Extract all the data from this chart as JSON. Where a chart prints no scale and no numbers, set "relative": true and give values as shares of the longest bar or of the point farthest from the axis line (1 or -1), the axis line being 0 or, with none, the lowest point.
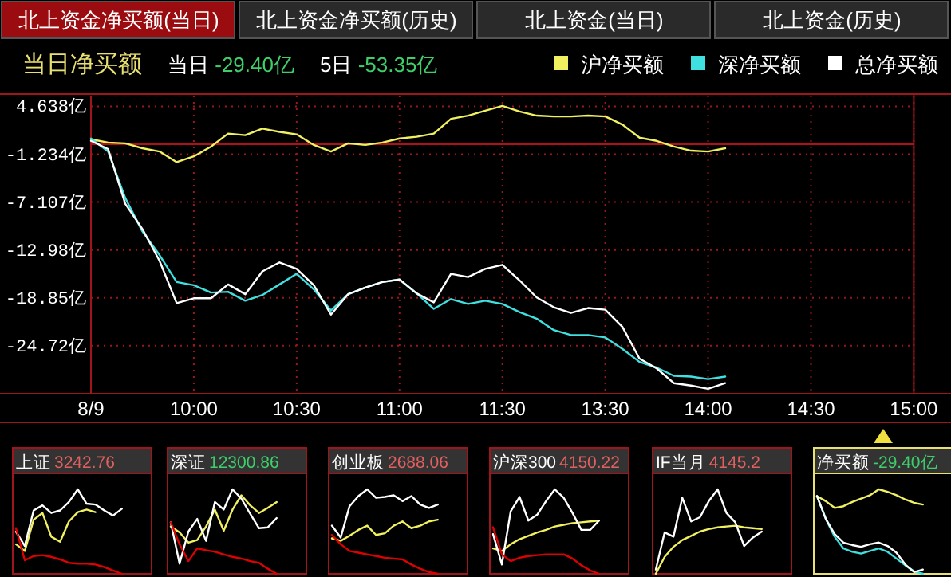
{
  "chart_data": [
    {
      "type": "line",
      "title": "当日净买额",
      "annotations": [
        "北上资金净买额(当日)",
        "北上资金净买额(历史)",
        "北上资金(当日)",
        "北上资金(历史)",
        "当日 -29.40亿",
        "5日 -53.35亿"
      ],
      "legend": "top right",
      "grid": true,
      "categories": [
        "8/9",
        null,
        null,
        null,
        null,
        null,
        "10:00",
        null,
        null,
        null,
        null,
        null,
        "10:30",
        null,
        null,
        null,
        null,
        null,
        "11:00",
        null,
        null,
        null,
        null,
        null,
        "11:30",
        null,
        null,
        null,
        null,
        null,
        "13:30",
        null,
        null,
        null,
        null,
        null,
        "14:00",
        null,
        null,
        null,
        null,
        null,
        "14:30",
        null,
        null,
        null,
        null,
        null,
        "15:00"
      ],
      "ylim": [
        -30.6,
        5.95
      ],
      "yticks": [
        {
          "value": 4.638,
          "label": "4.638亿"
        },
        {
          "value": -1.234,
          "label": "-1.234亿"
        },
        {
          "value": -7.107,
          "label": "-7.107亿"
        },
        {
          "value": -12.98,
          "label": "-12.98亿"
        },
        {
          "value": -18.85,
          "label": "-18.85亿"
        },
        {
          "value": -24.72,
          "label": "-24.72亿"
        }
      ],
      "ref_lines": [
        {
          "axis": "y",
          "value": 0,
          "color": "#b01018"
        }
      ],
      "series": [
        {
          "name": "沪净买额",
          "color": "#f0f060",
          "values": [
            0.6,
            0.2,
            0.1,
            -0.5,
            -0.9,
            -2.2,
            -1.5,
            -0.3,
            1.3,
            1.1,
            1.9,
            1.5,
            1.2,
            -0.1,
            -0.9,
            0.1,
            -0.1,
            0.2,
            0.7,
            0.9,
            1.3,
            3.1,
            3.5,
            4.1,
            4.7,
            4.0,
            3.5,
            3.4,
            3.4,
            3.5,
            3.4,
            2.4,
            0.8,
            0.4,
            -0.3,
            -0.8,
            -0.9,
            -0.5,
            null,
            null,
            null,
            null,
            null,
            null,
            null,
            null,
            null,
            null,
            null
          ]
        },
        {
          "name": "深净买额",
          "color": "#40e0e0",
          "values": [
            0.7,
            -0.9,
            -6.6,
            -10.7,
            -13.6,
            -16.9,
            -17.3,
            -18.2,
            -18.1,
            -19.2,
            -18.5,
            -17.2,
            -15.9,
            -17.8,
            -20.4,
            -18.4,
            -17.6,
            -16.9,
            -16.6,
            -18.3,
            -20.2,
            -19.0,
            -19.6,
            -19.2,
            -19.6,
            -20.6,
            -21.4,
            -22.8,
            -23.4,
            -23.4,
            -23.7,
            -25.1,
            -26.7,
            -27.4,
            -28.4,
            -28.5,
            -28.8,
            -28.5,
            null,
            null,
            null,
            null,
            null,
            null,
            null,
            null,
            null,
            null,
            null
          ]
        },
        {
          "name": "总净买额",
          "color": "#ffffff",
          "values": [
            0.4,
            -0.6,
            -7.3,
            -10.4,
            -14.3,
            -19.5,
            -18.9,
            -18.9,
            -17.2,
            -18.4,
            -15.6,
            -14.5,
            -15.3,
            -17.3,
            -20.9,
            -18.4,
            -17.6,
            -16.9,
            -16.6,
            -18.3,
            -19.4,
            -15.9,
            -16.3,
            -15.3,
            -14.8,
            -16.7,
            -18.8,
            -20.0,
            -20.7,
            -20.1,
            -20.3,
            -22.4,
            -26.3,
            -27.5,
            -29.3,
            -29.6,
            -30.0,
            -29.3,
            null,
            null,
            null,
            null,
            null,
            null,
            null,
            null,
            null,
            null,
            null
          ]
        }
      ]
    },
    {
      "type": "line",
      "title": "上证",
      "subtitle": "3242.76",
      "relative": true,
      "tick_labels": false,
      "categories": [
        null,
        null,
        null,
        null,
        null,
        null,
        null,
        null,
        null,
        null,
        null,
        null,
        null
      ],
      "series": [
        {
          "color": "#f0f060",
          "values": [
            0.35,
            0.27,
            0.64,
            0.72,
            0.44,
            0.38,
            0.62,
            0.73,
            0.76,
            0.73,
            null,
            null,
            null
          ]
        },
        {
          "color": "#ffffff",
          "values": [
            0.5,
            0.33,
            0.75,
            0.81,
            0.72,
            0.75,
            0.85,
            1.0,
            0.83,
            0.82,
            0.75,
            0.69,
            0.77
          ]
        },
        {
          "color": "#e00000",
          "values": [
            0.54,
            0.16,
            0.21,
            0.22,
            0.2,
            0.17,
            0.13,
            0.12,
            0.12,
            0.11,
            0.08,
            0.04,
            0
          ]
        }
      ]
    },
    {
      "type": "line",
      "title": "深证",
      "subtitle": "12300.86",
      "relative": true,
      "tick_labels": false,
      "categories": [
        null,
        null,
        null,
        null,
        null,
        null,
        null,
        null,
        null,
        null,
        null,
        null,
        null
      ],
      "series": [
        {
          "color": "#f0f060",
          "values": [
            0.56,
            0.49,
            0.37,
            0.4,
            0.56,
            0.76,
            0.51,
            0.76,
            0.93,
            0.81,
            0.72,
            0.78,
            0.85
          ]
        },
        {
          "color": "#ffffff",
          "values": [
            0.61,
            0.12,
            0.5,
            0.65,
            0.39,
            0.85,
            0.76,
            1.0,
            0.89,
            0.71,
            0.54,
            0.55,
            0.66
          ]
        },
        {
          "color": "#e00000",
          "values": [
            0.61,
            0.35,
            0.15,
            0.3,
            0.28,
            0.26,
            0.23,
            0.2,
            0.18,
            0.15,
            0.13,
            0.06,
            0
          ]
        }
      ]
    },
    {
      "type": "line",
      "title": "创业板",
      "subtitle": "2688.06",
      "relative": true,
      "tick_labels": false,
      "categories": [
        null,
        null,
        null,
        null,
        null,
        null,
        null,
        null,
        null,
        null,
        null,
        null,
        null
      ],
      "series": [
        {
          "color": "#f0f060",
          "values": [
            0.42,
            0.39,
            0.45,
            0.52,
            0.57,
            0.46,
            0.48,
            0.57,
            0.62,
            0.54,
            0.57,
            0.62,
            0.64
          ]
        },
        {
          "color": "#ffffff",
          "values": [
            0.57,
            0.43,
            0.8,
            0.92,
            1.0,
            0.9,
            0.91,
            0.93,
            0.86,
            0.92,
            0.82,
            0.78,
            0.82
          ]
        },
        {
          "color": "#e00000",
          "values": [
            0.46,
            0.35,
            0.27,
            0.25,
            0.23,
            0.21,
            0.19,
            0.18,
            0.17,
            0.11,
            0.06,
            0.02,
            0
          ]
        }
      ]
    },
    {
      "type": "line",
      "title": "沪深300",
      "subtitle": "4150.22",
      "relative": true,
      "tick_labels": false,
      "categories": [
        null,
        null,
        null,
        null,
        null,
        null,
        null,
        null,
        null,
        null,
        null,
        null,
        null
      ],
      "series": [
        {
          "color": "#f0f060",
          "values": [
            0.3,
            0.27,
            0.35,
            0.41,
            0.45,
            0.49,
            0.52,
            0.56,
            0.58,
            0.6,
            0.61,
            0.62,
            0.63
          ]
        },
        {
          "color": "#ffffff",
          "values": [
            0.47,
            0.11,
            0.74,
            0.91,
            0.63,
            0.7,
            0.86,
            1.0,
            0.9,
            0.72,
            0.52,
            0.52,
            0.63
          ]
        },
        {
          "color": "#e00000",
          "values": [
            0.55,
            0.23,
            0.15,
            0.19,
            0.21,
            0.22,
            0.23,
            0.23,
            0.23,
            0.18,
            0.1,
            0.04,
            0
          ]
        }
      ]
    },
    {
      "type": "line",
      "title": "IF当月",
      "subtitle": "4145.2",
      "relative": true,
      "tick_labels": false,
      "categories": [
        null,
        null,
        null,
        null,
        null,
        null,
        null,
        null,
        null,
        null,
        null,
        null,
        null
      ],
      "series": [
        {
          "color": "#f0f060",
          "values": [
            0,
            0.2,
            0.32,
            0.4,
            0.45,
            0.5,
            0.53,
            0.55,
            0.56,
            0.57,
            0.55,
            0.54,
            0.53
          ]
        },
        {
          "color": "#ffffff",
          "values": [
            0.05,
            0.49,
            0.44,
            0.9,
            0.62,
            0.67,
            0.86,
            1.0,
            0.72,
            0.61,
            0.33,
            0.43,
            0.5
          ]
        }
      ]
    },
    {
      "type": "line",
      "title": "净买额",
      "subtitle": "-29.40亿",
      "relative": true,
      "tick_labels": false,
      "categories": [
        null,
        null,
        null,
        null,
        null,
        null,
        null,
        null,
        null,
        null,
        null,
        null,
        null
      ],
      "series": [
        {
          "color": "#f0f060",
          "values": [
            0.92,
            0.86,
            0.78,
            0.8,
            0.85,
            0.89,
            0.93,
            1.0,
            0.97,
            0.93,
            0.88,
            0.84,
            0.82
          ]
        },
        {
          "color": "#40e0e0",
          "values": [
            0.92,
            0.65,
            0.44,
            0.3,
            0.26,
            0.24,
            0.27,
            0.3,
            0.26,
            0.18,
            0.1,
            0.03,
            0
          ]
        },
        {
          "color": "#ffffff",
          "values": [
            0.92,
            0.65,
            0.47,
            0.37,
            0.34,
            0.32,
            0.35,
            0.37,
            0.33,
            0.25,
            0.11,
            0.02,
            0.05
          ]
        }
      ]
    }
  ]
}
